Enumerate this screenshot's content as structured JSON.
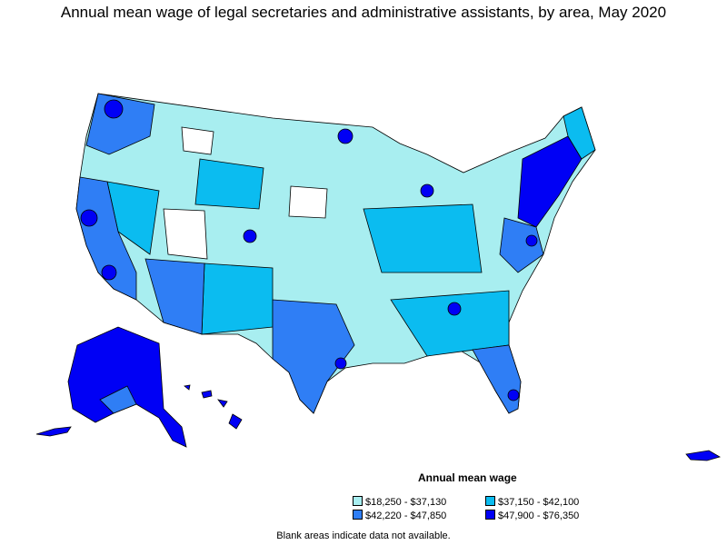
{
  "title": "Annual mean wage of legal secretaries and administrative assistants, by area, May 2020",
  "legend": {
    "title": "Annual mean wage",
    "items": [
      {
        "label": "$18,250 - $37,130",
        "color": "#a8eef0"
      },
      {
        "label": "$37,150 - $42,100",
        "color": "#0bbcf0"
      },
      {
        "label": "$42,220 - $47,850",
        "color": "#2f7ef5"
      },
      {
        "label": "$47,900 - $76,350",
        "color": "#0000f5"
      }
    ]
  },
  "footnote": "Blank areas indicate data not available.",
  "colors": {
    "nodata": "#ffffff",
    "border": "#000000"
  }
}
